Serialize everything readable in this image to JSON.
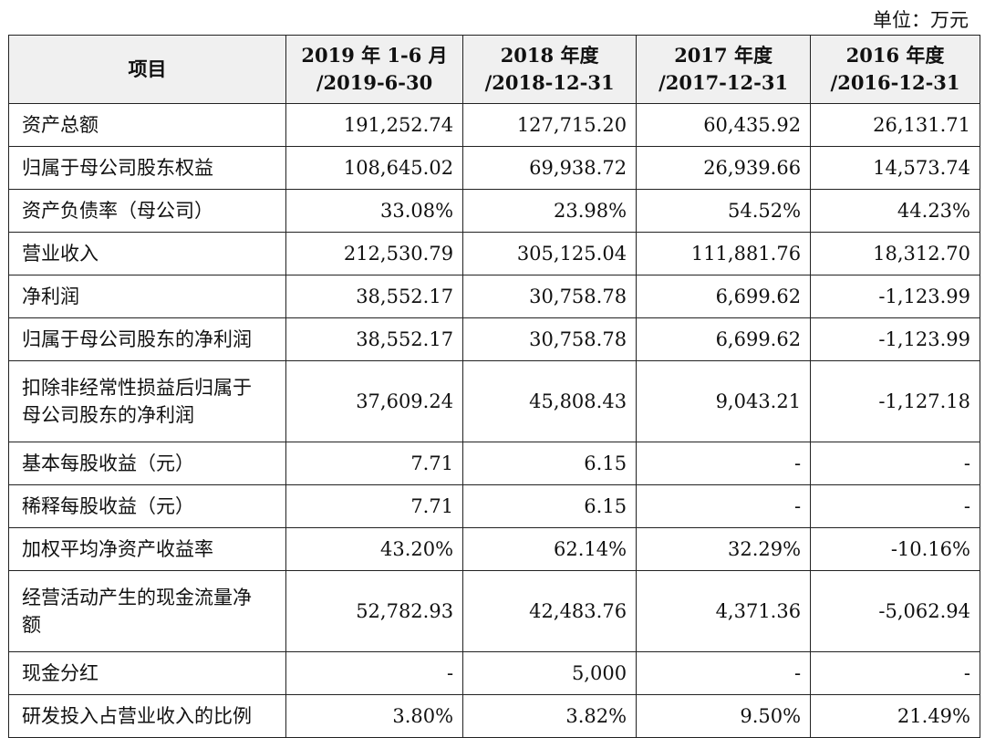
{
  "unit": "单位：万元",
  "header": {
    "item": "项目",
    "cols": [
      {
        "line1": "2019 年 1-6 月",
        "line2": "/2019-6-30"
      },
      {
        "line1": "2018 年度",
        "line2": "/2018-12-31"
      },
      {
        "line1": "2017 年度",
        "line2": "/2017-12-31"
      },
      {
        "line1": "2016 年度",
        "line2": "/2016-12-31"
      }
    ]
  },
  "rows": [
    {
      "label": "资产总额",
      "values": [
        "191,252.74",
        "127,715.20",
        "60,435.92",
        "26,131.71"
      ]
    },
    {
      "label": "归属于母公司股东权益",
      "values": [
        "108,645.02",
        "69,938.72",
        "26,939.66",
        "14,573.74"
      ]
    },
    {
      "label": "资产负债率（母公司）",
      "values": [
        "33.08%",
        "23.98%",
        "54.52%",
        "44.23%"
      ]
    },
    {
      "label": "营业收入",
      "values": [
        "212,530.79",
        "305,125.04",
        "111,881.76",
        "18,312.70"
      ]
    },
    {
      "label": "净利润",
      "values": [
        "38,552.17",
        "30,758.78",
        "6,699.62",
        "-1,123.99"
      ]
    },
    {
      "label": "归属于母公司股东的净利润",
      "values": [
        "38,552.17",
        "30,758.78",
        "6,699.62",
        "-1,123.99"
      ]
    },
    {
      "label_line1": "扣除非经常性损益后归属于",
      "label_line2": "母公司股东的净利润",
      "values": [
        "37,609.24",
        "45,808.43",
        "9,043.21",
        "-1,127.18"
      ]
    },
    {
      "label": "基本每股收益（元）",
      "values": [
        "7.71",
        "6.15",
        "-",
        "-"
      ]
    },
    {
      "label": "稀释每股收益（元）",
      "values": [
        "7.71",
        "6.15",
        "-",
        "-"
      ]
    },
    {
      "label": "加权平均净资产收益率",
      "values": [
        "43.20%",
        "62.14%",
        "32.29%",
        "-10.16%"
      ]
    },
    {
      "label_line1": "经营活动产生的现金流量净",
      "label_line2": "额",
      "values": [
        "52,782.93",
        "42,483.76",
        "4,371.36",
        "-5,062.94"
      ]
    },
    {
      "label": "现金分红",
      "values": [
        "-",
        "5,000",
        "-",
        "-"
      ]
    },
    {
      "label": "研发投入占营业收入的比例",
      "values": [
        "3.80%",
        "3.82%",
        "9.50%",
        "21.49%"
      ]
    }
  ]
}
